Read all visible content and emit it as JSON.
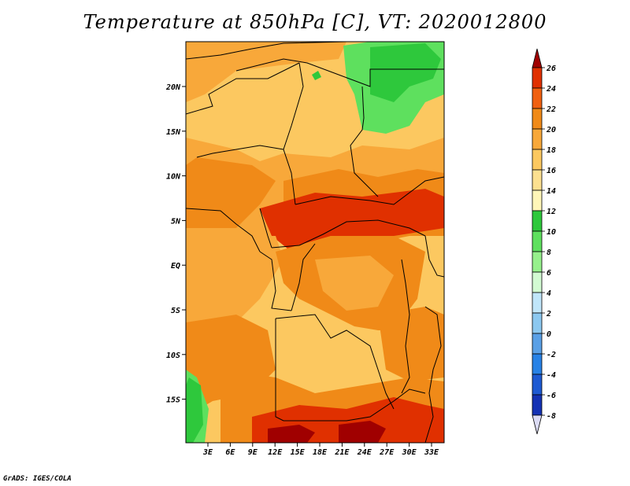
{
  "title": "Temperature at 850hPa [C], VT: 2020012800",
  "credit": "GrADS: IGES/COLA",
  "map": {
    "lat_ticks": [
      "20N",
      "15N",
      "10N",
      "5N",
      "EQ",
      "5S",
      "10S",
      "15S"
    ],
    "lon_ticks": [
      "3E",
      "6E",
      "9E",
      "12E",
      "15E",
      "18E",
      "21E",
      "24E",
      "27E",
      "30E",
      "33E"
    ]
  },
  "colorbar": {
    "levels": [
      "26",
      "24",
      "22",
      "20",
      "18",
      "16",
      "14",
      "12",
      "10",
      "8",
      "6",
      "4",
      "2",
      "0",
      "-2",
      "-4",
      "-6",
      "-8"
    ],
    "colors": [
      "#a00000",
      "#e03000",
      "#f06010",
      "#f08a18",
      "#f8a83a",
      "#fcc860",
      "#fce090",
      "#fff6b8",
      "#2ec83c",
      "#5ee05e",
      "#96f08c",
      "#d2fad2",
      "#c0e6fa",
      "#8cc8f0",
      "#5aa0e6",
      "#2882e6",
      "#1e5ad2",
      "#1432b4",
      "#0a0a78",
      "#dcdcf5"
    ]
  }
}
